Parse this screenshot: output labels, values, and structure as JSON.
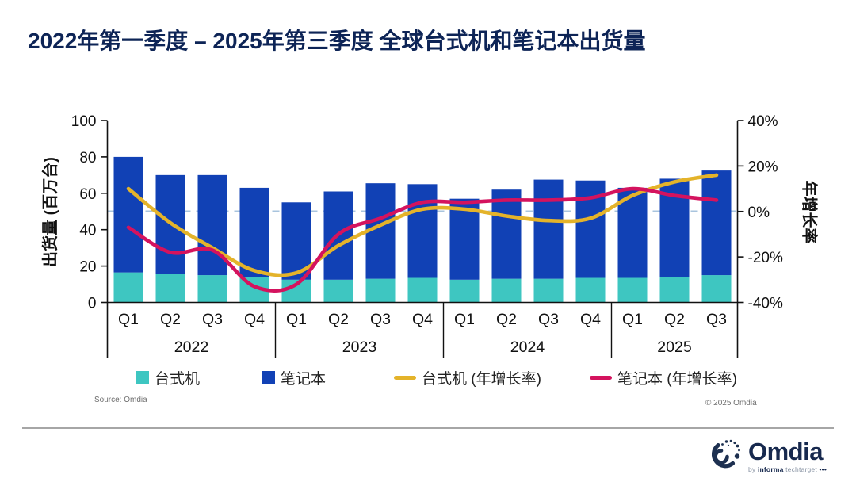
{
  "title": "2022年第一季度 – 2025年第三季度 全球台式机和笔记本出货量",
  "source_note": "Source: Omdia",
  "copyright": "© 2025 Omdia",
  "logo": {
    "name": "Omdia",
    "by": "by",
    "informa": "informa",
    "techtarget": "techtarget",
    "dots": "•••"
  },
  "colors": {
    "title": "#0d2456",
    "desktop_bar": "#3ec6c1",
    "notebook_bar": "#1141b5",
    "desktop_growth_line": "#e4b32a",
    "notebook_growth_line": "#d4135e",
    "zero_dashed_line": "#a9c4de",
    "axis": "#111111"
  },
  "chart_data": {
    "type": "combo: stacked bar + line",
    "title": "2022年第一季度 – 2025年第三季度 全球台式机和笔记本出货量",
    "left_axis": {
      "label": "出货量 (百万台)",
      "min": 0,
      "max": 100,
      "ticks": [
        0,
        20,
        40,
        60,
        80,
        100
      ]
    },
    "right_axis": {
      "label": "年增长率",
      "min": -40,
      "max": 40,
      "tick_labels": [
        "40%",
        "20%",
        "0%",
        "-20%",
        "-40%"
      ],
      "tick_values": [
        40,
        20,
        0,
        -20,
        -40
      ],
      "zero_line": "dashed"
    },
    "years": [
      {
        "label": "2022",
        "quarters": [
          "Q1",
          "Q2",
          "Q3",
          "Q4"
        ]
      },
      {
        "label": "2023",
        "quarters": [
          "Q1",
          "Q2",
          "Q3",
          "Q4"
        ]
      },
      {
        "label": "2024",
        "quarters": [
          "Q1",
          "Q2",
          "Q3",
          "Q4"
        ]
      },
      {
        "label": "2025",
        "quarters": [
          "Q1",
          "Q2",
          "Q3"
        ]
      }
    ],
    "categories": [
      "2022 Q1",
      "2022 Q2",
      "2022 Q3",
      "2022 Q4",
      "2023 Q1",
      "2023 Q2",
      "2023 Q3",
      "2023 Q4",
      "2024 Q1",
      "2024 Q2",
      "2024 Q3",
      "2024 Q4",
      "2025 Q1",
      "2025 Q2",
      "2025 Q3"
    ],
    "series": [
      {
        "name": "台式机",
        "type": "bar",
        "stack": "shipments",
        "axis": "left",
        "unit": "百万台",
        "color": "#3ec6c1",
        "values": [
          16.5,
          15.5,
          15,
          14,
          12.5,
          12.5,
          13,
          13.5,
          12.5,
          13,
          13,
          13.5,
          13.5,
          14,
          15
        ]
      },
      {
        "name": "笔记本",
        "type": "bar",
        "stack": "shipments",
        "axis": "left",
        "unit": "百万台",
        "color": "#1141b5",
        "values": [
          63.5,
          54.5,
          55,
          49,
          42.5,
          48.5,
          52.5,
          51.5,
          44.5,
          49,
          54.5,
          53.5,
          49.5,
          54,
          57.5
        ]
      },
      {
        "name": "台式机 (年增长率)",
        "type": "line",
        "axis": "right",
        "unit": "%",
        "color": "#e4b32a",
        "values": [
          10,
          -5,
          -16,
          -26,
          -27,
          -15,
          -6,
          1,
          1,
          -2,
          -4,
          -3,
          7,
          13,
          16
        ]
      },
      {
        "name": "笔记本 (年增长率)",
        "type": "line",
        "axis": "right",
        "unit": "%",
        "color": "#d4135e",
        "values": [
          -7,
          -18,
          -17,
          -33,
          -32,
          -10,
          -3,
          4,
          4,
          5,
          5,
          6,
          10,
          7,
          5
        ]
      }
    ],
    "legend_position": "bottom",
    "grid": "off"
  }
}
